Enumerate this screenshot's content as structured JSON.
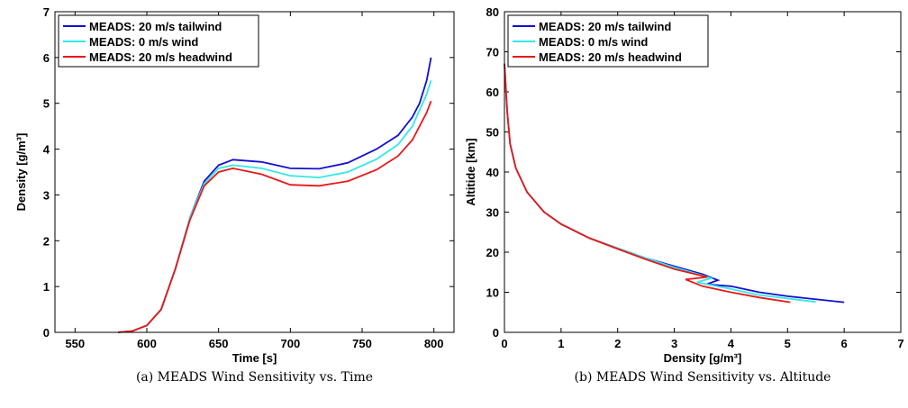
{
  "chart_data": [
    {
      "type": "line",
      "caption": "(a) MEADS Wind Sensitivity vs. Time",
      "xlabel": "Time [s]",
      "ylabel": "Density [g/m³]",
      "xlim": [
        536,
        814
      ],
      "xticks": [
        550,
        600,
        650,
        700,
        750,
        800
      ],
      "ylim": [
        0,
        7
      ],
      "yticks": [
        0,
        1,
        2,
        3,
        4,
        5,
        6,
        7
      ],
      "legend": "upper left",
      "series": [
        {
          "name": "MEADS: 20 m/s tailwind",
          "color": "#1010d0",
          "x": [
            580,
            590,
            600,
            610,
            620,
            630,
            640,
            650,
            660,
            680,
            700,
            720,
            740,
            760,
            775,
            785,
            790,
            795,
            798
          ],
          "values": [
            0,
            0.03,
            0.15,
            0.5,
            1.4,
            2.5,
            3.3,
            3.65,
            3.77,
            3.72,
            3.58,
            3.57,
            3.7,
            4.0,
            4.3,
            4.7,
            5.0,
            5.5,
            6.0
          ]
        },
        {
          "name": "MEADS: 0 m/s wind",
          "color": "#33e8e8",
          "x": [
            580,
            590,
            600,
            610,
            620,
            630,
            640,
            650,
            660,
            680,
            700,
            720,
            740,
            760,
            775,
            785,
            790,
            795,
            798
          ],
          "values": [
            0,
            0.03,
            0.15,
            0.5,
            1.4,
            2.5,
            3.25,
            3.58,
            3.65,
            3.58,
            3.42,
            3.38,
            3.5,
            3.78,
            4.1,
            4.5,
            4.85,
            5.2,
            5.5
          ]
        },
        {
          "name": "MEADS: 20 m/s headwind",
          "color": "#e81818",
          "x": [
            580,
            590,
            600,
            610,
            620,
            630,
            640,
            650,
            660,
            680,
            700,
            720,
            740,
            760,
            775,
            785,
            790,
            795,
            798
          ],
          "values": [
            0,
            0.03,
            0.15,
            0.5,
            1.4,
            2.45,
            3.2,
            3.5,
            3.58,
            3.45,
            3.22,
            3.2,
            3.3,
            3.55,
            3.85,
            4.2,
            4.5,
            4.8,
            5.05
          ]
        }
      ]
    },
    {
      "type": "line",
      "caption": "(b) MEADS Wind Sensitivity vs. Altitude",
      "xlabel": "Density [g/m³]",
      "ylabel": "Altitide [km]",
      "xlim": [
        0,
        7
      ],
      "xticks": [
        0,
        1,
        2,
        3,
        4,
        5,
        6,
        7
      ],
      "ylim": [
        0,
        80
      ],
      "yticks": [
        0,
        10,
        20,
        30,
        40,
        50,
        60,
        70,
        80
      ],
      "legend": "upper left",
      "series": [
        {
          "name": "MEADS: 20 m/s tailwind",
          "color": "#1010d0",
          "x": [
            0,
            0.05,
            0.1,
            0.2,
            0.4,
            0.7,
            1,
            1.5,
            2,
            2.5,
            3,
            3.5,
            3.77,
            3.57,
            4,
            4.5,
            5,
            6
          ],
          "values": [
            67,
            55,
            47,
            41,
            35,
            30,
            27,
            23.5,
            21,
            18.5,
            16.5,
            14.5,
            13,
            12,
            11.5,
            10,
            9,
            7.5
          ]
        },
        {
          "name": "MEADS: 0 m/s wind",
          "color": "#33e8e8",
          "x": [
            0,
            0.05,
            0.1,
            0.2,
            0.4,
            0.7,
            1,
            1.5,
            2,
            2.5,
            3,
            3.5,
            3.65,
            3.4,
            4,
            4.5,
            5.5
          ],
          "values": [
            67,
            55,
            47,
            41,
            35,
            30,
            27,
            23.5,
            21,
            18.5,
            16.2,
            14.2,
            13.5,
            12.5,
            10.8,
            9.3,
            7.6
          ]
        },
        {
          "name": "MEADS: 20 m/s headwind",
          "color": "#e81818",
          "x": [
            0,
            0.05,
            0.1,
            0.2,
            0.4,
            0.7,
            1,
            1.5,
            2,
            2.5,
            3,
            3.58,
            3.2,
            3.5,
            4,
            4.5,
            5.05
          ],
          "values": [
            67,
            55,
            47,
            41,
            35,
            30,
            27,
            23.5,
            20.8,
            18.2,
            15.8,
            13.8,
            13.2,
            11.5,
            10,
            8.7,
            7.5
          ]
        }
      ]
    }
  ]
}
